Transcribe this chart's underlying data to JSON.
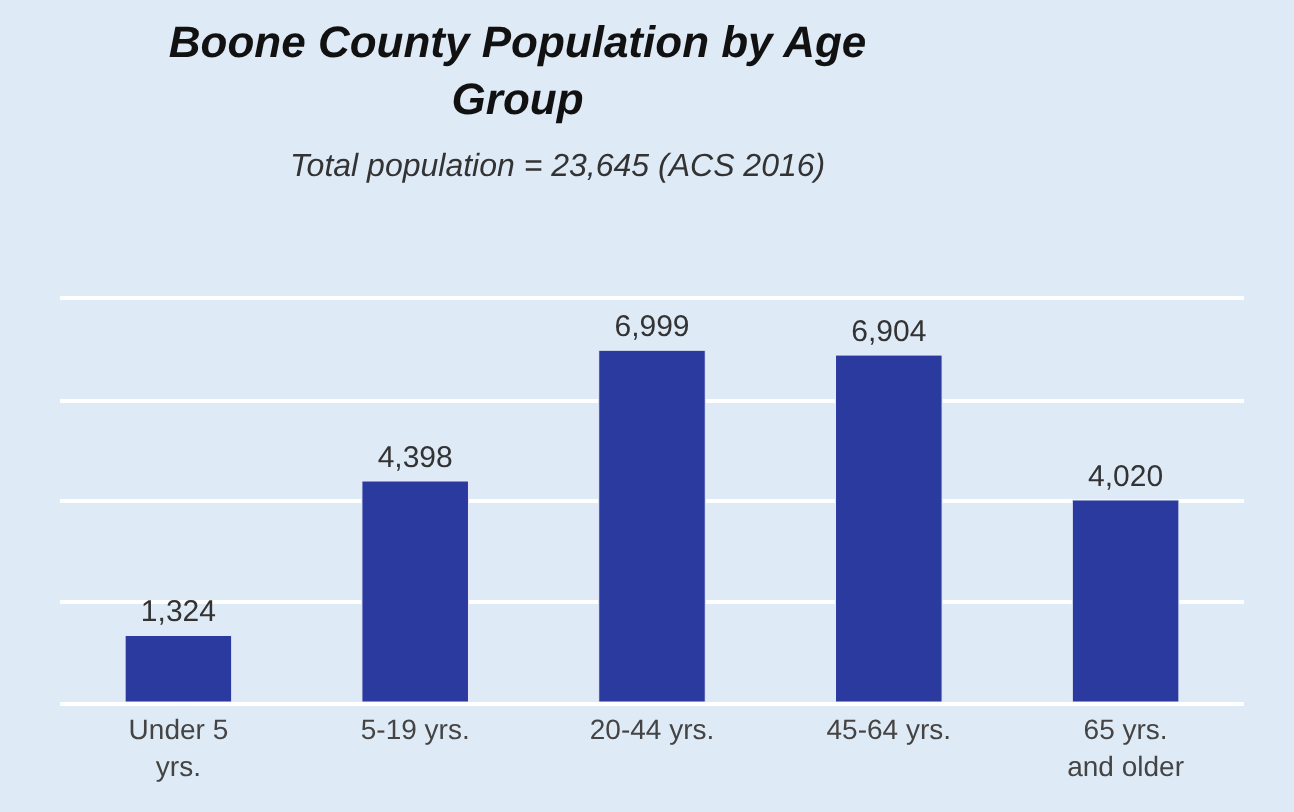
{
  "chart_data": {
    "type": "bar",
    "title": "Boone County Population by Age Group",
    "subtitle": "Total population = 23,645 (ACS 2016)",
    "categories": [
      "Under 5 yrs.",
      "5-19 yrs.",
      "20-44 yrs.",
      "45-64 yrs.",
      "65 yrs. and older"
    ],
    "values": [
      1324,
      4398,
      6999,
      6904,
      4020
    ],
    "color": "#2b3a9e",
    "ylim": [
      0,
      8000
    ],
    "yticks": [
      {
        "value": 0,
        "label": null
      },
      {
        "value": 2000,
        "label": null
      },
      {
        "value": 4000,
        "label": null
      },
      {
        "value": 6000,
        "label": null
      },
      {
        "value": 8000,
        "label": null
      }
    ],
    "value_labels": [
      "1,324",
      "4,398",
      "6,999",
      "6,904",
      "4,020"
    ],
    "grid": "y",
    "tick_labels": "x",
    "legend": false
  }
}
